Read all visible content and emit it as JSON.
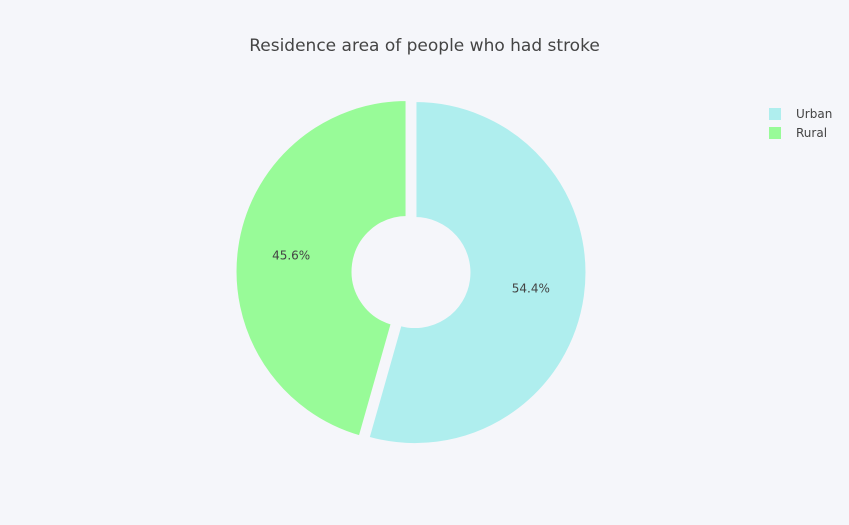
{
  "chart_data": {
    "type": "pie",
    "title": "Residence area of people who had stroke",
    "hole": true,
    "slices": [
      {
        "label": "Urban",
        "value": 54.4,
        "percent_label": "54.4%",
        "color": "#afeeee"
      },
      {
        "label": "Rural",
        "value": 45.6,
        "percent_label": "45.6%",
        "color": "#98fb98"
      }
    ],
    "legend_position": "top-right",
    "background_color": "#f5f6fa"
  }
}
